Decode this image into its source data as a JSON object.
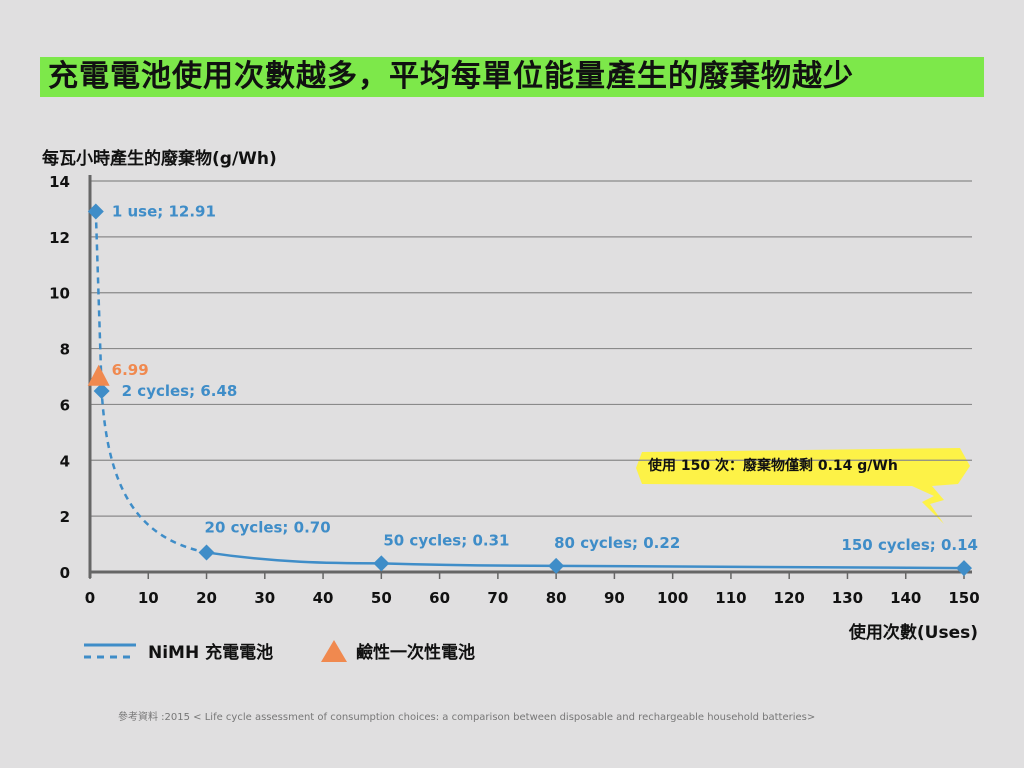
{
  "title": "充電電池使用次數越多，平均每單位能量產生的廢棄物越少",
  "chart_data": {
    "type": "line",
    "ylabel": "每瓦小時產生的廢棄物(g/Wh)",
    "xlabel": "使用次數(Uses)",
    "xlim": [
      0,
      150
    ],
    "ylim": [
      0,
      14
    ],
    "x_ticks": [
      "0",
      "10",
      "20",
      "30",
      "40",
      "50",
      "60",
      "70",
      "80",
      "90",
      "100",
      "110",
      "120",
      "130",
      "140",
      "150"
    ],
    "y_ticks": [
      "0",
      "2",
      "4",
      "6",
      "8",
      "10",
      "12",
      "14"
    ],
    "grid": "horizontal",
    "legend_position": "bottom-left",
    "series": [
      {
        "name": "NiMH 充電電池",
        "color": "#3f8dc8",
        "marker": "diamond",
        "points": [
          {
            "x": 1,
            "y": 12.91,
            "label": "1 use; 12.91"
          },
          {
            "x": 2,
            "y": 6.48,
            "label": "2 cycles; 6.48"
          },
          {
            "x": 20,
            "y": 0.7,
            "label": "20 cycles; 0.70"
          },
          {
            "x": 50,
            "y": 0.31,
            "label": "50 cycles; 0.31"
          },
          {
            "x": 80,
            "y": 0.22,
            "label": "80 cycles; 0.22"
          },
          {
            "x": 150,
            "y": 0.14,
            "label": "150 cycles; 0.14"
          }
        ]
      },
      {
        "name": "鹼性一次性電池",
        "color": "#f0894f",
        "marker": "triangle",
        "points": [
          {
            "x": 2,
            "y": 6.99,
            "label": "6.99"
          }
        ]
      }
    ],
    "annotation": {
      "text": "使用 150 次：廢棄物僅剩 0.14 g/Wh",
      "color": "#fdf247"
    }
  },
  "source": "參考資料 :2015 < Life cycle assessment of consumption choices: a comparison between disposable and rechargeable household batteries>"
}
